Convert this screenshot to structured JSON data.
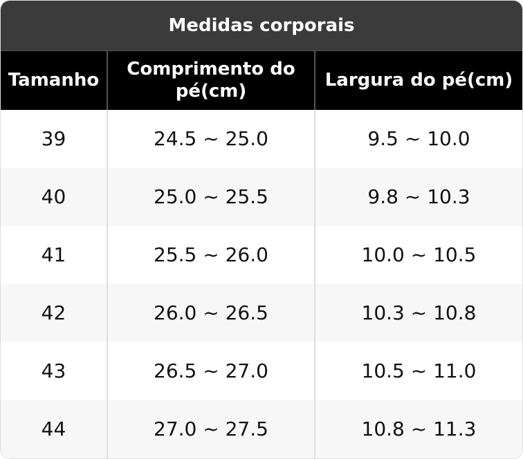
{
  "title": "Medidas corporais",
  "table": {
    "columns": [
      "Tamanho",
      "Comprimento do pé(cm)",
      "Largura do pé(cm)"
    ],
    "rows": [
      [
        "39",
        "24.5 ~ 25.0",
        "9.5 ~ 10.0"
      ],
      [
        "40",
        "25.0 ~ 25.5",
        "9.8 ~ 10.3"
      ],
      [
        "41",
        "25.5 ~ 26.0",
        "10.0 ~ 10.5"
      ],
      [
        "42",
        "26.0 ~ 26.5",
        "10.3 ~ 10.8"
      ],
      [
        "43",
        "26.5 ~ 27.0",
        "10.5 ~ 11.0"
      ],
      [
        "44",
        "27.0 ~ 27.5",
        "10.8 ~ 11.3"
      ]
    ]
  }
}
